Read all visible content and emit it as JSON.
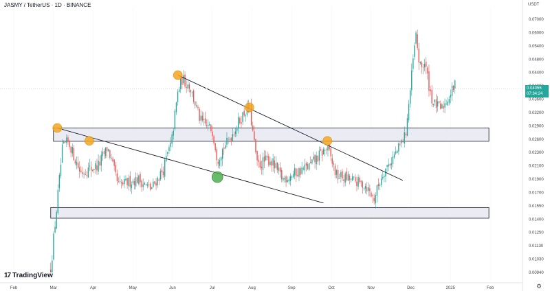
{
  "header": {
    "symbol_title": "JASMY / TetherUS · 1D · BINANCE",
    "currency": "USDT"
  },
  "price_badge": {
    "price": "0.04055",
    "countdown": "07:34:24",
    "color": "#26a69a"
  },
  "branding": {
    "logo_mark": "17",
    "logo_text": "TradingView"
  },
  "icons": {
    "settings": "gear-icon"
  },
  "colors": {
    "up": "#26a69a",
    "down": "#ef5350",
    "zone_fill": "#ebebf3",
    "marker": "#f5a623",
    "marker_green": "#4caf50"
  },
  "chart_data": {
    "type": "candlestick",
    "x_ticks": [
      "Feb",
      "Mar",
      "Apr",
      "May",
      "Jun",
      "Jul",
      "Aug",
      "Sep",
      "Oct",
      "Nov",
      "Dec",
      "2025",
      "Feb"
    ],
    "y_ticks": [
      "0.07000",
      "0.06000",
      "0.05400",
      "0.04800",
      "0.04400",
      "0.04000",
      "0.03600",
      "0.03200",
      "0.02900",
      "0.02600",
      "0.02300",
      "0.02100",
      "0.01900",
      "0.01700",
      "0.01550",
      "0.01400",
      "0.01250",
      "0.01130",
      "0.01030",
      "0.00940"
    ],
    "scale": "log",
    "current_price": 0.04055,
    "closes": [
      {
        "x": "2024-02-28",
        "y": 0.0095
      },
      {
        "x": "2024-03-04",
        "y": 0.016
      },
      {
        "x": "2024-03-08",
        "y": 0.024
      },
      {
        "x": "2024-03-12",
        "y": 0.0255
      },
      {
        "x": "2024-03-22",
        "y": 0.02
      },
      {
        "x": "2024-04-05",
        "y": 0.021
      },
      {
        "x": "2024-04-12",
        "y": 0.024
      },
      {
        "x": "2024-04-20",
        "y": 0.018
      },
      {
        "x": "2024-05-05",
        "y": 0.019
      },
      {
        "x": "2024-05-15",
        "y": 0.0175
      },
      {
        "x": "2024-05-25",
        "y": 0.0205
      },
      {
        "x": "2024-05-31",
        "y": 0.025
      },
      {
        "x": "2024-06-05",
        "y": 0.038
      },
      {
        "x": "2024-06-08",
        "y": 0.042
      },
      {
        "x": "2024-06-14",
        "y": 0.04
      },
      {
        "x": "2024-06-22",
        "y": 0.03
      },
      {
        "x": "2024-07-01",
        "y": 0.028
      },
      {
        "x": "2024-07-05",
        "y": 0.022
      },
      {
        "x": "2024-07-12",
        "y": 0.025
      },
      {
        "x": "2024-07-22",
        "y": 0.03
      },
      {
        "x": "2024-07-30",
        "y": 0.034
      },
      {
        "x": "2024-08-05",
        "y": 0.021
      },
      {
        "x": "2024-08-15",
        "y": 0.022
      },
      {
        "x": "2024-08-25",
        "y": 0.019
      },
      {
        "x": "2024-09-05",
        "y": 0.02
      },
      {
        "x": "2024-09-15",
        "y": 0.021
      },
      {
        "x": "2024-09-28",
        "y": 0.024
      },
      {
        "x": "2024-10-05",
        "y": 0.0195
      },
      {
        "x": "2024-10-15",
        "y": 0.019
      },
      {
        "x": "2024-10-28",
        "y": 0.018
      },
      {
        "x": "2024-11-03",
        "y": 0.0162
      },
      {
        "x": "2024-11-10",
        "y": 0.02
      },
      {
        "x": "2024-11-20",
        "y": 0.023
      },
      {
        "x": "2024-11-27",
        "y": 0.027
      },
      {
        "x": "2024-12-05",
        "y": 0.059
      },
      {
        "x": "2024-12-08",
        "y": 0.045
      },
      {
        "x": "2024-12-12",
        "y": 0.047
      },
      {
        "x": "2024-12-18",
        "y": 0.035
      },
      {
        "x": "2024-12-25",
        "y": 0.033
      },
      {
        "x": "2025-01-05",
        "y": 0.0405
      }
    ],
    "zones": [
      {
        "from": "2024-03-01",
        "to": "2025-01-31",
        "low": 0.0255,
        "high": 0.0285
      },
      {
        "from": "2024-02-28",
        "to": "2025-01-31",
        "low": 0.0141,
        "high": 0.0153
      }
    ],
    "trendlines": [
      {
        "x1": "2024-03-04",
        "y1": 0.0285,
        "x2": "2024-09-25",
        "y2": 0.0158
      },
      {
        "x1": "2024-06-05",
        "y1": 0.0432,
        "x2": "2024-11-25",
        "y2": 0.0188
      }
    ],
    "markers": [
      {
        "x": "2024-03-04",
        "y": 0.0285,
        "color": "orange"
      },
      {
        "x": "2024-03-29",
        "y": 0.0256,
        "color": "orange"
      },
      {
        "x": "2024-06-05",
        "y": 0.0432,
        "color": "orange"
      },
      {
        "x": "2024-07-30",
        "y": 0.0335,
        "color": "orange"
      },
      {
        "x": "2024-09-28",
        "y": 0.0256,
        "color": "orange"
      },
      {
        "x": "2024-07-05",
        "y": 0.0193,
        "color": "green"
      }
    ]
  }
}
